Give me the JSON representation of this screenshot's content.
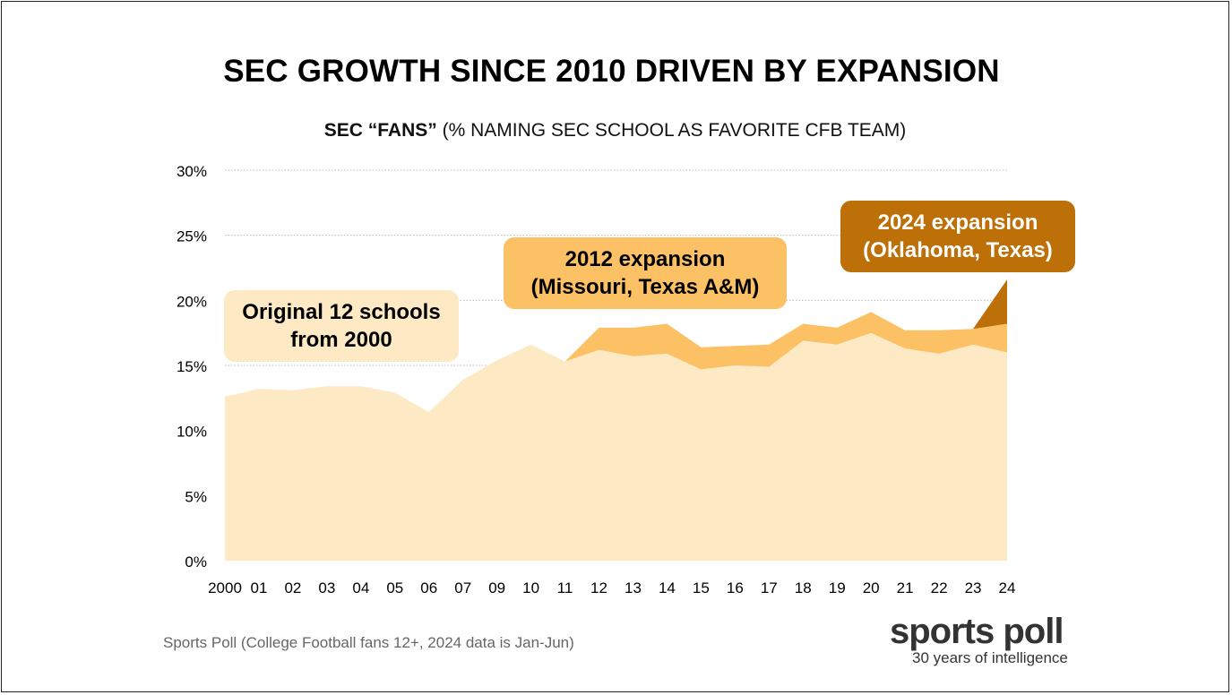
{
  "title": "SEC GROWTH SINCE 2010 DRIVEN BY EXPANSION",
  "subtitle_bold": "SEC “FANS”",
  "subtitle_rest": " (% NAMING SEC SCHOOL AS FAVORITE CFB TEAM)",
  "annotations": {
    "original_line1": "Original 12 schools",
    "original_line2": "from 2000",
    "exp2012_line1": "2012 expansion",
    "exp2012_line2": "(Missouri, Texas A&M)",
    "exp2024_line1": "2024 expansion",
    "exp2024_line2": "(Oklahoma, Texas)"
  },
  "source": "Sports Poll (College Football fans 12+, 2024 data is Jan-Jun)",
  "brand": {
    "name": "sports poll",
    "tagline": "30 years of intelligence"
  },
  "colors": {
    "original": "#FDE9C4",
    "exp2012": "#FCC065",
    "exp2024": "#BD6F08",
    "grid": "#BBBBBB"
  },
  "chart_data": {
    "type": "area",
    "stacked": true,
    "categories": [
      "2000",
      "01",
      "02",
      "03",
      "04",
      "05",
      "06",
      "07",
      "09",
      "10",
      "11",
      "12",
      "13",
      "14",
      "15",
      "16",
      "17",
      "18",
      "19",
      "20",
      "21",
      "22",
      "23",
      "24"
    ],
    "series": [
      {
        "values": [
          12.6,
          13.2,
          13.1,
          13.4,
          13.4,
          12.9,
          11.4,
          13.9,
          15.4,
          16.6,
          15.3,
          16.2,
          15.7,
          15.9,
          14.7,
          15.0,
          14.9,
          16.9,
          16.6,
          17.5,
          16.3,
          15.9,
          16.6,
          16.0
        ]
      },
      {
        "values": [
          0,
          0,
          0,
          0,
          0,
          0,
          0,
          0,
          0,
          0,
          0,
          1.7,
          2.2,
          2.3,
          1.7,
          1.5,
          1.7,
          1.3,
          1.3,
          1.6,
          1.4,
          1.8,
          1.2,
          2.2
        ]
      },
      {
        "values": [
          0,
          0,
          0,
          0,
          0,
          0,
          0,
          0,
          0,
          0,
          0,
          0,
          0,
          0,
          0,
          0,
          0,
          0,
          0,
          0,
          0,
          0,
          0,
          3.4
        ]
      }
    ],
    "ylim": [
      0,
      30
    ],
    "yticks": [
      "0%",
      "5%",
      "10%",
      "15%",
      "20%",
      "25%",
      "30%"
    ],
    "grid": true
  }
}
